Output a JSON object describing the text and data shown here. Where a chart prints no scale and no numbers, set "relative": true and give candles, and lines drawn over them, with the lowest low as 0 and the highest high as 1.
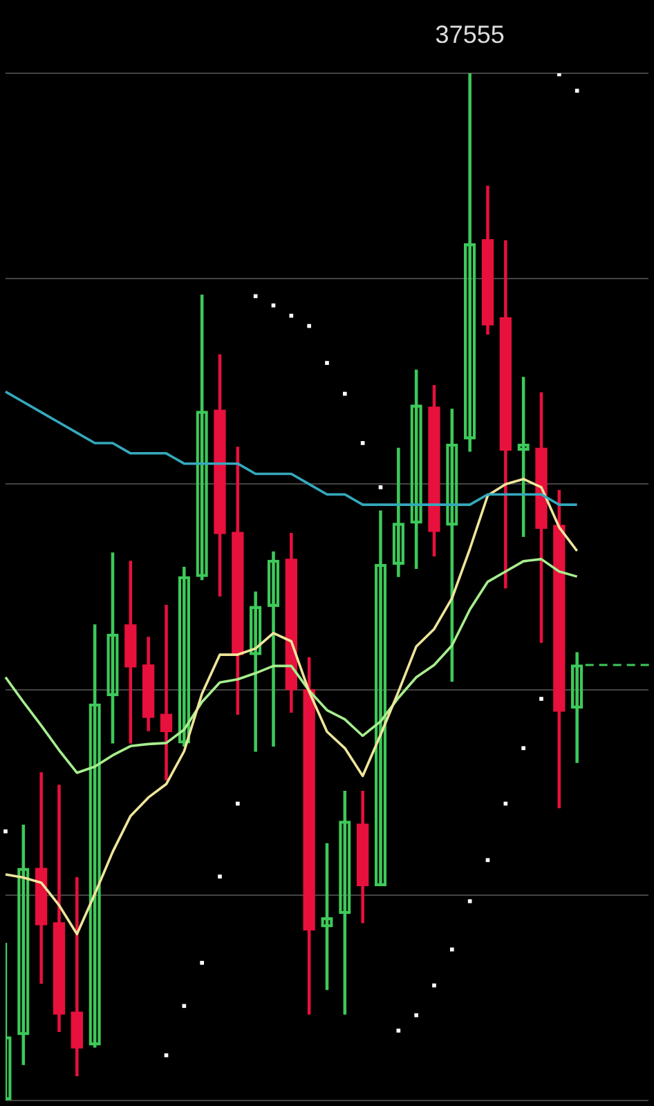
{
  "chart_data": {
    "type": "candlestick",
    "relative": true,
    "grid": "y",
    "legend": false,
    "categories": [
      null,
      null,
      null,
      null,
      null,
      null,
      null,
      null,
      null,
      null,
      null,
      null,
      null,
      null,
      null,
      null,
      null,
      null,
      null,
      null,
      null,
      null,
      null,
      null,
      null,
      null,
      null,
      null,
      null,
      null,
      null,
      null,
      null,
      null,
      null,
      null,
      null
    ],
    "ohlc": [
      [
        0,
        0.153,
        0,
        0.062
      ],
      [
        0.064,
        0.268,
        0.035,
        0.226
      ],
      [
        0.226,
        0.319,
        0.114,
        0.171
      ],
      [
        0.173,
        0.307,
        0.067,
        0.084
      ],
      [
        0.086,
        0.217,
        0.024,
        0.051
      ],
      [
        0.054,
        0.463,
        0.052,
        0.386
      ],
      [
        0.394,
        0.533,
        0.348,
        0.454
      ],
      [
        0.463,
        0.525,
        0.348,
        0.422
      ],
      [
        0.424,
        0.451,
        0.36,
        0.373
      ],
      [
        0.376,
        0.482,
        0.312,
        0.359
      ],
      [
        0.348,
        0.519,
        0.345,
        0.51
      ],
      [
        0.51,
        0.784,
        0.507,
        0.671
      ],
      [
        0.672,
        0.726,
        0.491,
        0.552
      ],
      [
        0.553,
        0.636,
        0.376,
        0.434
      ],
      [
        0.434,
        0.495,
        0.34,
        0.481
      ],
      [
        0.481,
        0.534,
        0.345,
        0.526
      ],
      [
        0.527,
        0.552,
        0.378,
        0.4
      ],
      [
        0.4,
        0.431,
        0.084,
        0.166
      ],
      [
        0.169,
        0.25,
        0.108,
        0.178
      ],
      [
        0.182,
        0.301,
        0.084,
        0.272
      ],
      [
        0.269,
        0.301,
        0.173,
        0.209
      ],
      [
        0.209,
        0.574,
        0.209,
        0.522
      ],
      [
        0.522,
        0.635,
        0.51,
        0.562
      ],
      [
        0.562,
        0.711,
        0.518,
        0.677
      ],
      [
        0.675,
        0.696,
        0.53,
        0.554
      ],
      [
        0.56,
        0.673,
        0.408,
        0.639
      ],
      [
        0.644,
        1,
        0.632,
        0.834
      ],
      [
        0.838,
        0.89,
        0.746,
        0.755
      ],
      [
        0.762,
        0.837,
        0.499,
        0.633
      ],
      [
        0.633,
        0.704,
        0.549,
        0.639
      ],
      [
        0.635,
        0.689,
        0.446,
        0.557
      ],
      [
        0.56,
        0.594,
        0.285,
        0.379
      ],
      [
        0.382,
        0.436,
        0.329,
        0.424
      ],
      null,
      null,
      null,
      null
    ],
    "colors": [
      "#3ec95a",
      "#3ec95a",
      "#e8103c",
      "#e8103c",
      "#e8103c",
      "#3ec95a",
      "#3ec95a",
      "#e8103c",
      "#e8103c",
      "#e8103c",
      "#3ec95a",
      "#3ec95a",
      "#e8103c",
      "#e8103c",
      "#3ec95a",
      "#3ec95a",
      "#e8103c",
      "#e8103c",
      "#3ec95a",
      "#3ec95a",
      "#e8103c",
      "#3ec95a",
      "#3ec95a",
      "#3ec95a",
      "#e8103c",
      "#3ec95a",
      "#3ec95a",
      "#e8103c",
      "#e8103c",
      "#3ec95a",
      "#e8103c",
      "#e8103c",
      "#3ec95a",
      null,
      null,
      null,
      null
    ],
    "series": [
      {
        "type": "line",
        "color": "#35a9bd",
        "values": [
          0.69,
          0.68,
          0.67,
          0.66,
          0.65,
          0.64,
          0.64,
          0.63,
          0.63,
          0.63,
          0.62,
          0.62,
          0.62,
          0.62,
          0.61,
          0.61,
          0.61,
          0.6,
          0.59,
          0.59,
          0.58,
          0.58,
          0.58,
          0.58,
          0.58,
          0.58,
          0.58,
          0.59,
          0.59,
          0.59,
          0.59,
          0.58,
          0.58,
          null,
          null,
          null,
          null
        ]
      },
      {
        "type": "line",
        "color": "#efe59a",
        "values": [
          0.22,
          0.217,
          0.212,
          0.19,
          0.162,
          0.201,
          0.242,
          0.277,
          0.295,
          0.308,
          0.34,
          0.396,
          0.434,
          0.434,
          0.44,
          0.455,
          0.447,
          0.398,
          0.359,
          0.343,
          0.316,
          0.356,
          0.398,
          0.442,
          0.459,
          0.489,
          0.537,
          0.589,
          0.6,
          0.605,
          0.597,
          0.558,
          0.535,
          null,
          null,
          null,
          null
        ]
      },
      {
        "type": "line",
        "color": "#a6ee8e",
        "values": [
          0.412,
          0.388,
          0.365,
          0.341,
          0.319,
          0.325,
          0.336,
          0.345,
          0.347,
          0.348,
          0.361,
          0.388,
          0.407,
          0.41,
          0.416,
          0.423,
          0.423,
          0.399,
          0.38,
          0.371,
          0.355,
          0.369,
          0.392,
          0.412,
          0.424,
          0.443,
          0.478,
          0.505,
          0.515,
          0.525,
          0.527,
          0.515,
          0.51,
          null,
          null,
          null,
          null
        ]
      },
      {
        "type": "scatter",
        "color": "#ffffff",
        "marker": "square",
        "values": [
          0.262,
          null,
          null,
          null,
          null,
          null,
          null,
          null,
          null,
          0.044,
          0.092,
          0.134,
          0.218,
          0.289,
          0.783,
          0.774,
          0.764,
          0.754,
          0.718,
          0.688,
          0.64,
          0.597,
          0.068,
          0.083,
          0.112,
          0.147,
          0.194,
          0.234,
          0.289,
          0.343,
          0.391,
          0.999,
          0.983,
          null,
          null,
          null,
          null
        ]
      }
    ],
    "ref_lines": [
      {
        "axis": "y",
        "value": 0.424,
        "color": "#3ec95a",
        "line_style": "dashed"
      }
    ],
    "annotations": [
      {
        "text": "37555",
        "y": 1
      }
    ]
  }
}
